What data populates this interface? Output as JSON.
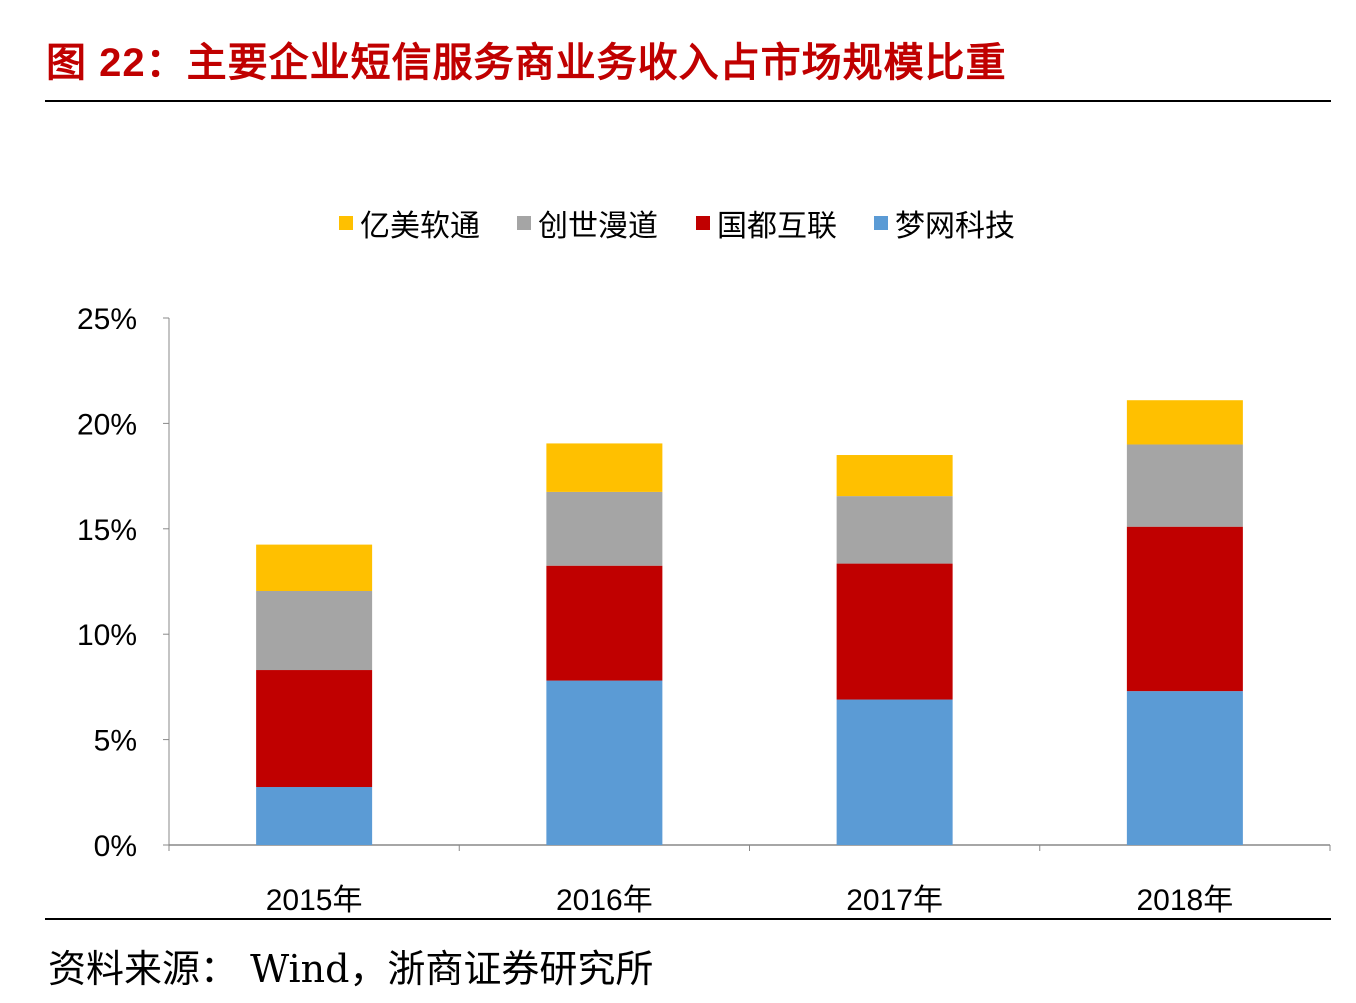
{
  "title": "图 22：主要企业短信服务商业务收入占市场规模比重",
  "source": "资料来源： Wind，浙商证券研究所",
  "chart_data": {
    "type": "bar",
    "stacked": true,
    "title": "",
    "xlabel": "",
    "ylabel": "",
    "categories": [
      "2015年",
      "2016年",
      "2017年",
      "2018年"
    ],
    "ylim": [
      0,
      25
    ],
    "yticks": [
      "0%",
      "5%",
      "10%",
      "15%",
      "20%",
      "25%"
    ],
    "legend_position": "top",
    "series": [
      {
        "name": "梦网科技",
        "color": "#5b9bd5",
        "values": [
          2.75,
          7.8,
          6.9,
          7.3
        ]
      },
      {
        "name": "国都互联",
        "color": "#c00000",
        "values": [
          5.55,
          5.45,
          6.45,
          7.8
        ]
      },
      {
        "name": "创世漫道",
        "color": "#a5a5a5",
        "values": [
          3.75,
          3.5,
          3.2,
          3.9
        ]
      },
      {
        "name": "亿美软通",
        "color": "#ffc000",
        "values": [
          2.2,
          2.3,
          1.95,
          2.1
        ]
      }
    ],
    "legend_order": [
      "亿美软通",
      "创世漫道",
      "国都互联",
      "梦网科技"
    ]
  }
}
